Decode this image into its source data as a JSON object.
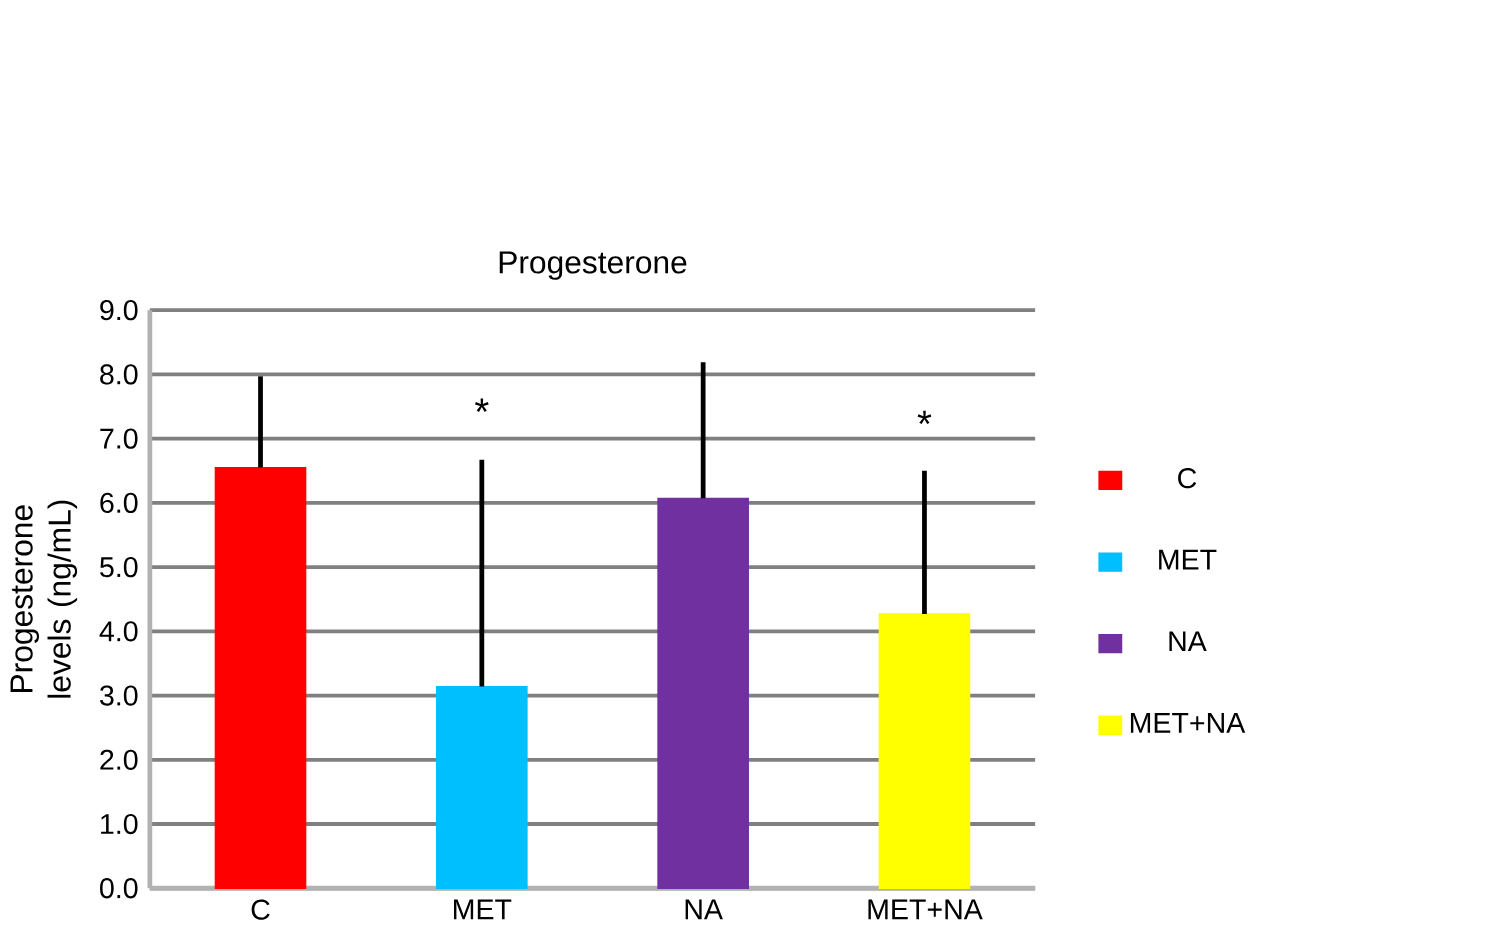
{
  "chart_data": {
    "type": "bar",
    "title": "Progesterone",
    "ylabel": "Progesterone levels (ng/mL)",
    "categories": [
      "C",
      "MET",
      "NA",
      "MET+NA"
    ],
    "series": [
      {
        "name": "C",
        "color": "#ff0000",
        "values": [
          6.55,
          null,
          null,
          null
        ],
        "errors": [
          [
            6.55,
            7.97
          ],
          null,
          null,
          null
        ]
      },
      {
        "name": "MET",
        "color": "#00bfff",
        "values": [
          null,
          3.14,
          null,
          null
        ],
        "errors": [
          null,
          [
            3.14,
            6.67
          ],
          null,
          null
        ]
      },
      {
        "name": "NA",
        "color": "#7030a0",
        "values": [
          null,
          null,
          6.07,
          null
        ],
        "errors": [
          null,
          null,
          [
            6.07,
            8.19
          ],
          null
        ]
      },
      {
        "name": "MET+NA",
        "color": "#ffff00",
        "values": [
          null,
          null,
          null,
          4.27
        ],
        "errors": [
          null,
          null,
          null,
          [
            4.27,
            6.5
          ]
        ]
      }
    ],
    "ylim": [
      0,
      9
    ],
    "yticks": [
      {
        "value": 0,
        "label": "0.0"
      },
      {
        "value": 1,
        "label": "1.0"
      },
      {
        "value": 2,
        "label": "2.0"
      },
      {
        "value": 3,
        "label": "3.0"
      },
      {
        "value": 4,
        "label": "4.0"
      },
      {
        "value": 5,
        "label": "5.0"
      },
      {
        "value": 6,
        "label": "6.0"
      },
      {
        "value": 7,
        "label": "7.0"
      },
      {
        "value": 8,
        "label": "8.0"
      },
      {
        "value": 9,
        "label": "9.0"
      }
    ],
    "annotations": [
      "*",
      "*"
    ],
    "grid": "y",
    "legend": "right"
  }
}
